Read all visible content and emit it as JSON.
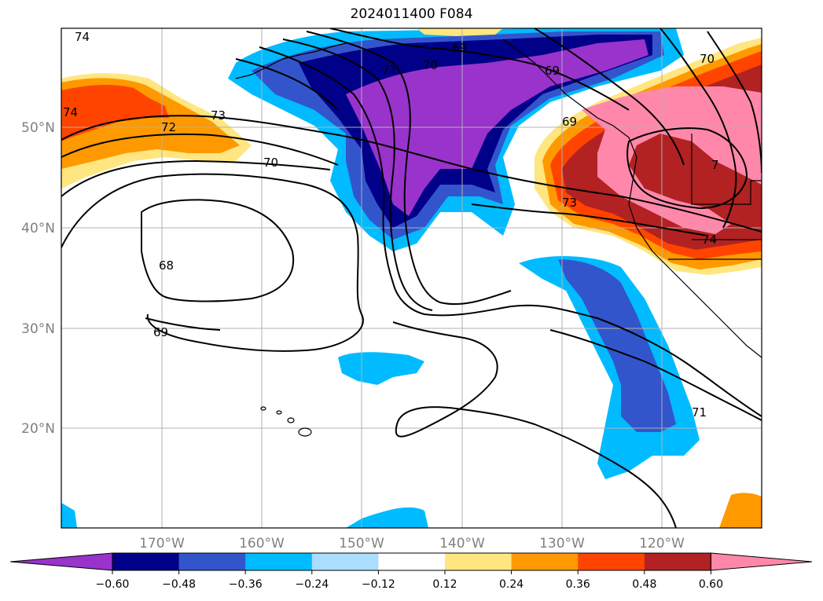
{
  "title": "2024011400 F084",
  "lat_labels": [
    "50°N",
    "40°N",
    "30°N",
    "20°N"
  ],
  "lon_labels": [
    "170°W",
    "160°W",
    "150°W",
    "140°W",
    "130°W",
    "120°W"
  ],
  "colorbar": {
    "colors": [
      "#9933cc",
      "#000088",
      "#3355cc",
      "#00bbff",
      "#aaddff",
      "#ffffff",
      "#ffe680",
      "#ff9900",
      "#ff4400",
      "#b22222",
      "#ff88aa"
    ],
    "ticks": [
      "−0.60",
      "−0.48",
      "−0.36",
      "−0.24",
      "−0.12",
      "0.12",
      "0.24",
      "0.36",
      "0.48",
      "0.60"
    ]
  },
  "contour_labels": [
    "74",
    "74",
    "73",
    "72",
    "71",
    "70",
    "70",
    "69",
    "69",
    "68",
    "69",
    "69",
    "73",
    "74",
    "71",
    "70"
  ]
}
